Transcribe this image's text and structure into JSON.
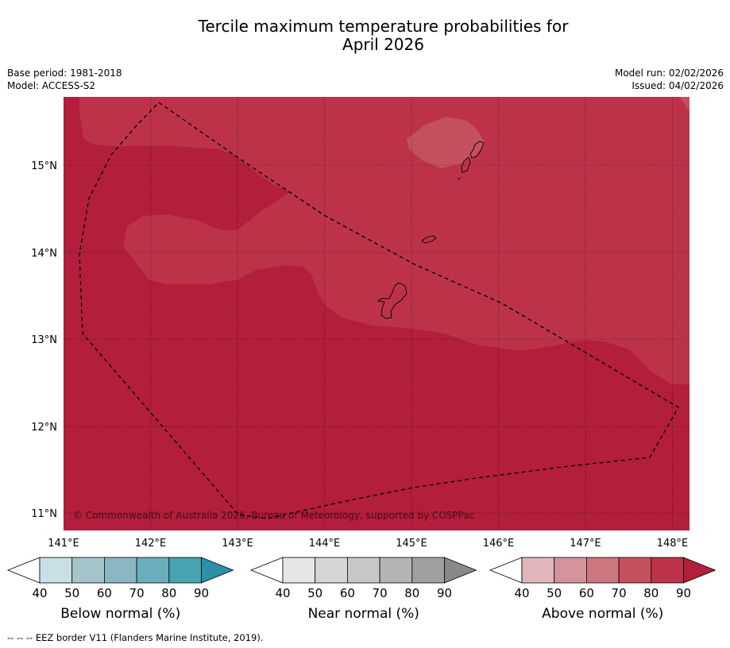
{
  "title": {
    "line1": "Tercile maximum temperature probabilities for",
    "line2": "April 2026"
  },
  "meta": {
    "base_period": "Base period: 1981-2018",
    "model": "Model: ACCESS-S2",
    "model_run": "Model run: 02/02/2026",
    "issued": "Issued: 04/02/2026"
  },
  "map": {
    "lon_ticks": [
      "141°E",
      "142°E",
      "143°E",
      "144°E",
      "145°E",
      "146°E",
      "147°E",
      "148°E"
    ],
    "lat_ticks": [
      "15°N",
      "14°N",
      "13°N",
      "12°N",
      "11°N"
    ],
    "copyright": "© Commonwealth of Australia 2026, Bureau of Meteorology, supported by COSPPac",
    "colors": {
      "above_80": "#bc3349",
      "above_90": "#b21e3b",
      "above_70": "#c4505e",
      "border": "#000000"
    }
  },
  "colorbars": [
    {
      "name": "below",
      "label": "Below normal (%)",
      "ticks": [
        "40",
        "50",
        "60",
        "70",
        "80",
        "90"
      ],
      "colors": [
        "#ffffff",
        "#c8e0e6",
        "#a6c5ca",
        "#8ab8c2",
        "#6aaebd",
        "#48a3b2",
        "#2c91a6"
      ]
    },
    {
      "name": "near",
      "label": "Near normal (%)",
      "ticks": [
        "40",
        "50",
        "60",
        "70",
        "80",
        "90"
      ],
      "colors": [
        "#ffffff",
        "#e6e6e6",
        "#d6d6d6",
        "#c8c8c8",
        "#b4b4b4",
        "#a0a0a0",
        "#888888"
      ]
    },
    {
      "name": "above",
      "label": "Above normal (%)",
      "ticks": [
        "40",
        "50",
        "60",
        "70",
        "80",
        "90"
      ],
      "colors": [
        "#ffffff",
        "#e2b5bc",
        "#d4939b",
        "#cc7680",
        "#c4505e",
        "#bc3349",
        "#b21e3b"
      ]
    }
  ],
  "footnote": "--  --  -- EEZ border V11 (Flanders Marine Institute, 2019)."
}
